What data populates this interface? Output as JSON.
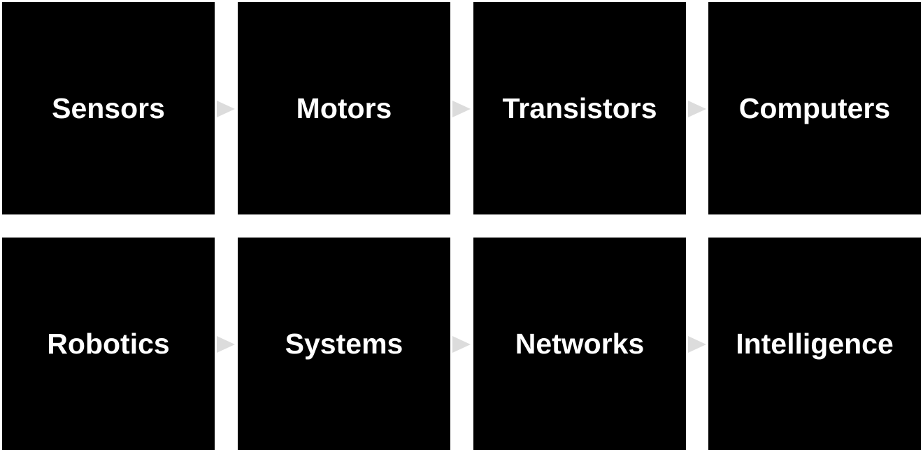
{
  "diagram": {
    "rows": [
      {
        "steps": [
          {
            "label": "Sensors"
          },
          {
            "label": "Motors"
          },
          {
            "label": "Transistors"
          },
          {
            "label": "Computers"
          }
        ]
      },
      {
        "steps": [
          {
            "label": "Robotics"
          },
          {
            "label": "Systems"
          },
          {
            "label": "Networks"
          },
          {
            "label": "Intelligence"
          }
        ]
      }
    ],
    "colors": {
      "box_background": "#000000",
      "box_text": "#ffffff",
      "arrow": "#dcdcdc",
      "page_background": "#ffffff"
    }
  }
}
